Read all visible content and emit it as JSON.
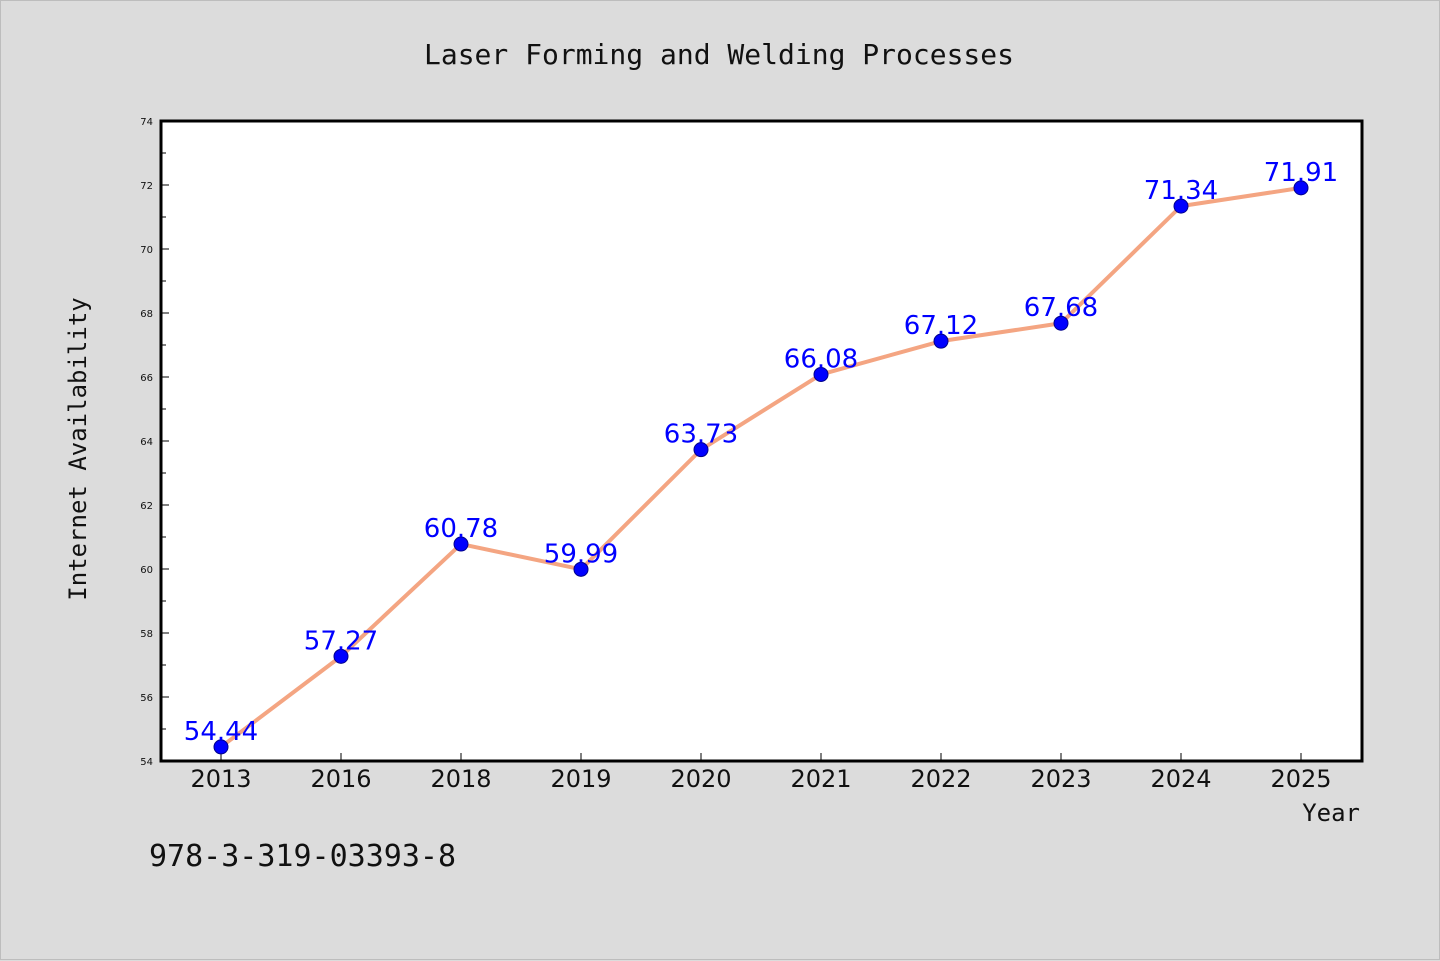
{
  "figure": {
    "background": "#dcdcdc",
    "plot_background": "#ffffff",
    "footnote": "978-3-319-03393-8"
  },
  "chart_data": {
    "type": "line",
    "title": "Laser Forming and Welding Processes",
    "xlabel": "Year",
    "ylabel": "Internet Availability",
    "categories": [
      "2013",
      "2016",
      "2018",
      "2019",
      "2020",
      "2021",
      "2022",
      "2023",
      "2024",
      "2025"
    ],
    "series": [
      {
        "values": [
          54.44,
          57.27,
          60.78,
          59.99,
          63.73,
          66.08,
          67.12,
          67.68,
          71.34,
          71.91
        ],
        "labels": [
          "54.44",
          "57.27",
          "60.78",
          "59.99",
          "63.73",
          "66.08",
          "67.12",
          "67.68",
          "71.34",
          "71.91"
        ],
        "line_color": "#f4a582",
        "marker_color": "#0000ff",
        "label_color": "#0000ff"
      }
    ],
    "ylim": [
      54,
      74
    ],
    "yticks": [
      "54",
      "56",
      "58",
      "60",
      "62",
      "64",
      "66",
      "68",
      "70",
      "72",
      "74"
    ],
    "grid": false,
    "legend": "none"
  }
}
